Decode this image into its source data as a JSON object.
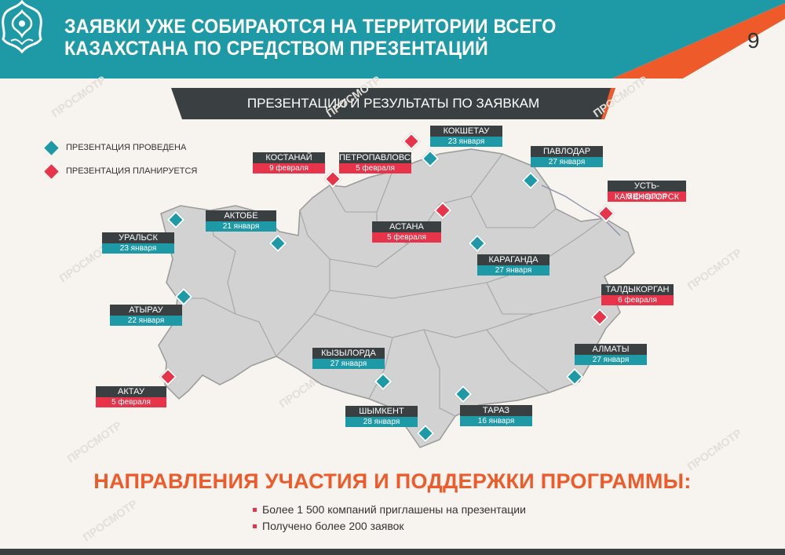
{
  "header": {
    "title": "Заявки уже собираются на территории всего Казахстана по средством презентаций",
    "page_number": "9"
  },
  "banner": {
    "label": "Презентации и результаты по заявкам"
  },
  "legend": {
    "done_label": "Презентация проведена",
    "planned_label": "Презентация планируется"
  },
  "colors": {
    "done": "#1e9aa7",
    "planned": "#e8344a",
    "accent": "#ee5a2a",
    "dark": "#3a3f42"
  },
  "cities": [
    {
      "name": "Кокшетау",
      "date": "23 января",
      "status": "done"
    },
    {
      "name": "Костанай",
      "date": "9 февраля",
      "status": "planned"
    },
    {
      "name": "Петропавловск",
      "date": "5 февраля",
      "status": "planned"
    },
    {
      "name": "Павлодар",
      "date": "27 января",
      "status": "done"
    },
    {
      "name": "Усть-Каменогорск",
      "date": "5 февраля",
      "status": "planned"
    },
    {
      "name": "Актобе",
      "date": "21 января",
      "status": "done"
    },
    {
      "name": "Уральск",
      "date": "23 января",
      "status": "done"
    },
    {
      "name": "Астана",
      "date": "5 февраля",
      "status": "planned"
    },
    {
      "name": "Караганда",
      "date": "27 января",
      "status": "done"
    },
    {
      "name": "Талдыкорган",
      "date": "6 февраля",
      "status": "planned"
    },
    {
      "name": "Атырау",
      "date": "22 января",
      "status": "done"
    },
    {
      "name": "Кызылорда",
      "date": "27 января",
      "status": "done"
    },
    {
      "name": "Алматы",
      "date": "27 января",
      "status": "done"
    },
    {
      "name": "Актау",
      "date": "5 февраля",
      "status": "planned"
    },
    {
      "name": "Шымкент",
      "date": "28 января",
      "status": "done"
    },
    {
      "name": "Тараз",
      "date": "16 января",
      "status": "done"
    }
  ],
  "headline": "Направления участия и поддержки программы:",
  "bullets": [
    "Более 1 500 компаний приглашены на презентации",
    "Получено более 200 заявок"
  ],
  "watermark": "ПРОСМОТР"
}
